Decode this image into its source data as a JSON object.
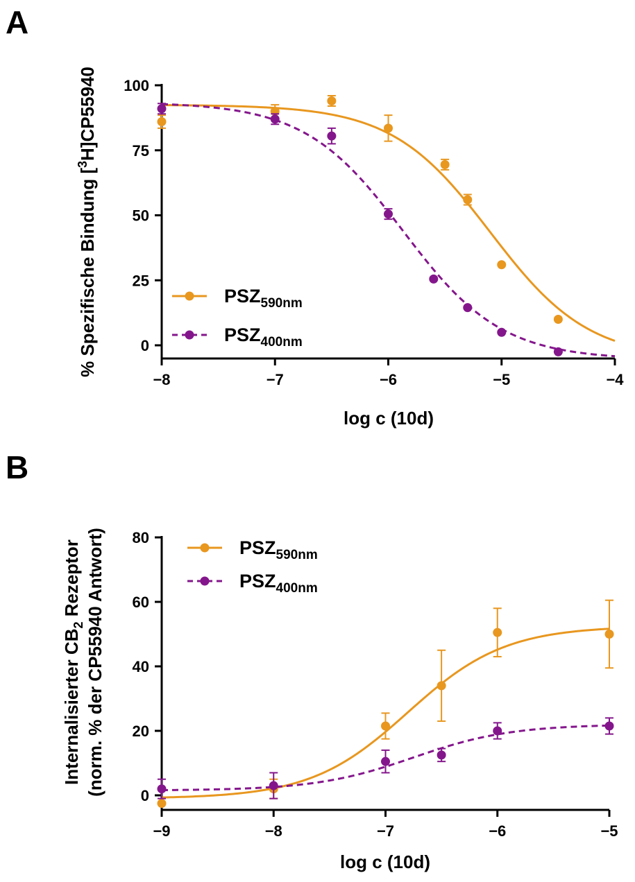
{
  "colors": {
    "orange": "#E8971F",
    "purple": "#84168C",
    "axis": "#000000"
  },
  "chart_data": [
    {
      "type": "scatter",
      "panel_label": "A",
      "title": "",
      "xlabel": "log c (10d)",
      "ylabel": {
        "pre": "% Spezifische Bindung [",
        "sup": "3",
        "post": "H]CP55940"
      },
      "xlim": [
        -8,
        -4
      ],
      "ylim": [
        -5,
        100
      ],
      "xticks": [
        -8,
        -7,
        -6,
        -5,
        -4
      ],
      "yticks": [
        0,
        25,
        50,
        75,
        100
      ],
      "grid": false,
      "legend_position": "bottom-left",
      "series": [
        {
          "name": "PSZ590nm",
          "name_main": "PSZ",
          "name_sub": "590nm",
          "color": "orange",
          "line_style": "solid",
          "points": [
            {
              "x": -8,
              "y": 86,
              "err": 2.5
            },
            {
              "x": -7,
              "y": 90,
              "err": 2.5
            },
            {
              "x": -6.5,
              "y": 94,
              "err": 2
            },
            {
              "x": -6,
              "y": 83.5,
              "err": 5
            },
            {
              "x": -5.5,
              "y": 69.5,
              "err": 2
            },
            {
              "x": -5.3,
              "y": 56,
              "err": 2
            },
            {
              "x": -5,
              "y": 31,
              "err": 0
            },
            {
              "x": -4.5,
              "y": 10,
              "err": 0
            }
          ],
          "fit": {
            "top": 92.5,
            "bottom": -5.5,
            "log_ic50": -5.1,
            "hill": -1
          }
        },
        {
          "name": "PSZ400nm",
          "name_main": "PSZ",
          "name_sub": "400nm",
          "color": "purple",
          "line_style": "dashed",
          "points": [
            {
              "x": -8,
              "y": 91,
              "err": 2
            },
            {
              "x": -7,
              "y": 87,
              "err": 2
            },
            {
              "x": -6.5,
              "y": 80.5,
              "err": 3
            },
            {
              "x": -6,
              "y": 50.5,
              "err": 2
            },
            {
              "x": -5.6,
              "y": 25.5,
              "err": 0
            },
            {
              "x": -5.3,
              "y": 14.5,
              "err": 0
            },
            {
              "x": -5,
              "y": 5,
              "err": 0
            },
            {
              "x": -4.5,
              "y": -2.5,
              "err": 0
            }
          ],
          "fit": {
            "top": 93.5,
            "bottom": -5.5,
            "log_ic50": -5.87,
            "hill": -1
          }
        }
      ]
    },
    {
      "type": "scatter",
      "panel_label": "B",
      "title": "",
      "xlabel": "log c (10d)",
      "ylabel_line1": {
        "pre": "Internalisierter CB",
        "sub": "2",
        "post": " Rezeptor"
      },
      "ylabel_line2": "(norm. % der CP55940 Antwort)",
      "xlim": [
        -9,
        -5
      ],
      "ylim": [
        -5,
        80
      ],
      "xticks": [
        -9,
        -8,
        -7,
        -6,
        -5
      ],
      "yticks": [
        0,
        20,
        40,
        60,
        80
      ],
      "grid": false,
      "legend_position": "top-left",
      "series": [
        {
          "name": "PSZ590nm",
          "name_main": "PSZ",
          "name_sub": "590nm",
          "color": "orange",
          "line_style": "solid",
          "points": [
            {
              "x": -9,
              "y": -2.5,
              "err": 0
            },
            {
              "x": -8,
              "y": 2,
              "err": 3
            },
            {
              "x": -7,
              "y": 21.5,
              "err": 4
            },
            {
              "x": -6.5,
              "y": 34,
              "err": 11
            },
            {
              "x": -6,
              "y": 50.5,
              "err": 7.5
            },
            {
              "x": -5,
              "y": 50,
              "err": 10.5
            }
          ],
          "fit": {
            "bottom": -1,
            "top": 52.5,
            "log_ec50": -6.8,
            "hill": 1
          }
        },
        {
          "name": "PSZ400nm",
          "name_main": "PSZ",
          "name_sub": "400nm",
          "color": "purple",
          "line_style": "dashed",
          "points": [
            {
              "x": -9,
              "y": 2,
              "err": 3
            },
            {
              "x": -8,
              "y": 3,
              "err": 4
            },
            {
              "x": -7,
              "y": 10.5,
              "err": 3.5
            },
            {
              "x": -6.5,
              "y": 12.5,
              "err": 2
            },
            {
              "x": -6,
              "y": 20,
              "err": 2.5
            },
            {
              "x": -5,
              "y": 21.5,
              "err": 2.5
            }
          ],
          "fit": {
            "bottom": 1.5,
            "top": 22,
            "log_ec50": -6.75,
            "hill": 1
          }
        }
      ]
    }
  ]
}
